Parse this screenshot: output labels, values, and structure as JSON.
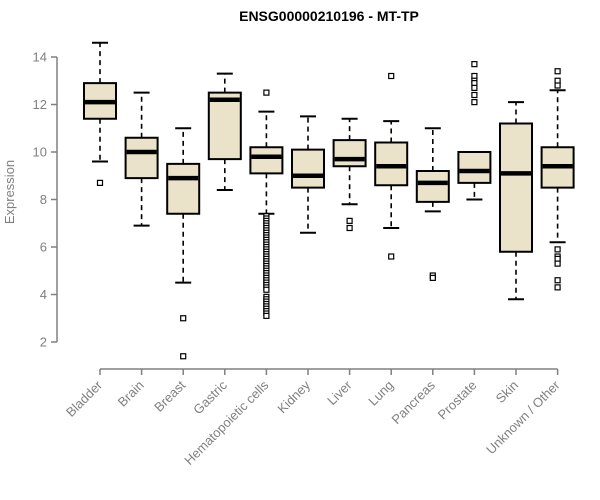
{
  "colors": {
    "box_fill": "#EAE3C9",
    "box_border": "#000000",
    "whisker": "#000000",
    "axis": "#808080",
    "tick_text": "#808080",
    "title_text": "#000000",
    "background": "#FFFFFF"
  },
  "chart_data": {
    "type": "boxplot",
    "title": "ENSG00000210196 - MT-TP",
    "xlabel": "",
    "ylabel": "Expression",
    "grid": "off",
    "legend": "none",
    "ylim": [
      1.2,
      14.8
    ],
    "yticks": [
      2,
      4,
      6,
      8,
      10,
      12,
      14
    ],
    "categories": [
      "Bladder",
      "Brain",
      "Breast",
      "Gastric",
      "Hematopoietic cells",
      "Kidney",
      "Liver",
      "Lung",
      "Pancreas",
      "Prostate",
      "Skin",
      "Unknown / Other"
    ],
    "boxes": [
      {
        "label": "Bladder",
        "whisker_low": 9.6,
        "q1": 11.4,
        "median": 12.1,
        "q3": 12.9,
        "whisker_high": 14.6,
        "outliers": [
          8.7
        ]
      },
      {
        "label": "Brain",
        "whisker_low": 6.9,
        "q1": 8.9,
        "median": 10.0,
        "q3": 10.6,
        "whisker_high": 12.5,
        "outliers": []
      },
      {
        "label": "Breast",
        "whisker_low": 4.5,
        "q1": 7.4,
        "median": 8.9,
        "q3": 9.5,
        "whisker_high": 11.0,
        "outliers": [
          3.0,
          1.4
        ]
      },
      {
        "label": "Gastric",
        "whisker_low": 8.4,
        "q1": 9.7,
        "median": 12.2,
        "q3": 12.5,
        "whisker_high": 13.3,
        "outliers": []
      },
      {
        "label": "Hematopoietic cells",
        "whisker_low": 7.4,
        "q1": 9.1,
        "median": 9.8,
        "q3": 10.2,
        "whisker_high": 11.7,
        "outliers": [
          12.5,
          7.3,
          7.2,
          7.1,
          7.0,
          6.9,
          6.8,
          6.7,
          6.6,
          6.5,
          6.4,
          6.3,
          6.2,
          6.1,
          6.0,
          5.9,
          5.8,
          5.7,
          5.6,
          5.5,
          5.4,
          5.3,
          5.2,
          5.1,
          5.0,
          4.9,
          4.8,
          4.7,
          4.6,
          4.5,
          4.4,
          4.3,
          4.2,
          3.9,
          3.8,
          3.7,
          3.6,
          3.5,
          3.4,
          3.3,
          3.2,
          3.1
        ]
      },
      {
        "label": "Kidney",
        "whisker_low": 6.6,
        "q1": 8.5,
        "median": 9.0,
        "q3": 10.1,
        "whisker_high": 11.5,
        "outliers": []
      },
      {
        "label": "Liver",
        "whisker_low": 7.8,
        "q1": 9.4,
        "median": 9.7,
        "q3": 10.5,
        "whisker_high": 11.4,
        "outliers": [
          7.1,
          6.8
        ]
      },
      {
        "label": "Lung",
        "whisker_low": 6.8,
        "q1": 8.6,
        "median": 9.4,
        "q3": 10.4,
        "whisker_high": 11.3,
        "outliers": [
          13.2,
          5.6
        ]
      },
      {
        "label": "Pancreas",
        "whisker_low": 7.5,
        "q1": 7.9,
        "median": 8.7,
        "q3": 9.2,
        "whisker_high": 11.0,
        "outliers": [
          4.8,
          4.7
        ]
      },
      {
        "label": "Prostate",
        "whisker_low": 8.0,
        "q1": 8.7,
        "median": 9.2,
        "q3": 10.0,
        "whisker_high": 10.0,
        "outliers": [
          13.7,
          13.2,
          13.0,
          12.9,
          12.7,
          12.4,
          12.1
        ]
      },
      {
        "label": "Skin",
        "whisker_low": 3.8,
        "q1": 5.8,
        "median": 9.1,
        "q3": 11.2,
        "whisker_high": 12.1,
        "outliers": []
      },
      {
        "label": "Unknown / Other",
        "whisker_low": 6.2,
        "q1": 8.5,
        "median": 9.4,
        "q3": 10.2,
        "whisker_high": 12.6,
        "outliers": [
          13.4,
          13.0,
          12.8,
          5.9,
          5.6,
          5.5,
          5.3,
          4.6,
          4.3
        ]
      }
    ]
  }
}
